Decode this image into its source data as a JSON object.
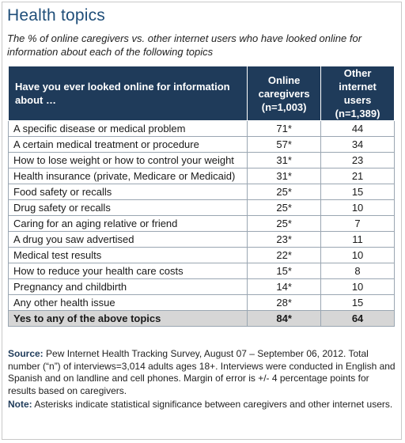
{
  "title": "Health topics",
  "subtitle": "The % of online caregivers vs. other internet users who have looked online for information about each of the following topics",
  "chart_data": {
    "type": "table",
    "columns": [
      "Have you ever looked online for information about …",
      "Online caregivers (n=1,003)",
      "Other internet users (n=1,389)"
    ],
    "header_lines": {
      "question": [
        "Have you ever looked online for information",
        "about …"
      ],
      "caregivers": [
        "Online",
        "caregivers",
        "(n=1,003)"
      ],
      "others": [
        "Other",
        "internet",
        "users",
        "(n=1,389)"
      ]
    },
    "rows": [
      {
        "topic": "A specific disease or medical problem",
        "caregivers": "71*",
        "others": "44"
      },
      {
        "topic": "A certain medical treatment or procedure",
        "caregivers": "57*",
        "others": "34"
      },
      {
        "topic": "How to lose weight or how to control your weight",
        "caregivers": "31*",
        "others": "23"
      },
      {
        "topic": "Health insurance (private, Medicare or Medicaid)",
        "caregivers": "31*",
        "others": "21"
      },
      {
        "topic": "Food safety or recalls",
        "caregivers": "25*",
        "others": "15"
      },
      {
        "topic": "Drug safety or recalls",
        "caregivers": "25*",
        "others": "10"
      },
      {
        "topic": "Caring for an aging relative or friend",
        "caregivers": "25*",
        "others": "7"
      },
      {
        "topic": "A drug you saw advertised",
        "caregivers": "23*",
        "others": "11"
      },
      {
        "topic": "Medical test results",
        "caregivers": "22*",
        "others": "10"
      },
      {
        "topic": "How to reduce your health care costs",
        "caregivers": "15*",
        "others": "8"
      },
      {
        "topic": "Pregnancy and childbirth",
        "caregivers": "14*",
        "others": "10"
      },
      {
        "topic": "Any other health issue",
        "caregivers": "28*",
        "others": "15"
      }
    ],
    "total_row": {
      "topic": "Yes to any of the above topics",
      "caregivers": "84*",
      "others": "64"
    }
  },
  "source": {
    "label": "Source:",
    "text": "Pew Internet Health Tracking Survey, August 07 – September 06, 2012. Total number (“n”) of interviews=3,014 adults ages 18+. Interviews were conducted in English and Spanish and on landline and cell phones.  Margin of error is +/- 4 percentage points for results based on caregivers."
  },
  "note": {
    "label": "Note:",
    "text": "Asterisks indicate statistical significance between caregivers and other internet users."
  },
  "colors": {
    "title": "#1f4e79",
    "header_bg": "#1f3b5a",
    "total_row_bg": "#d6d6d6"
  }
}
